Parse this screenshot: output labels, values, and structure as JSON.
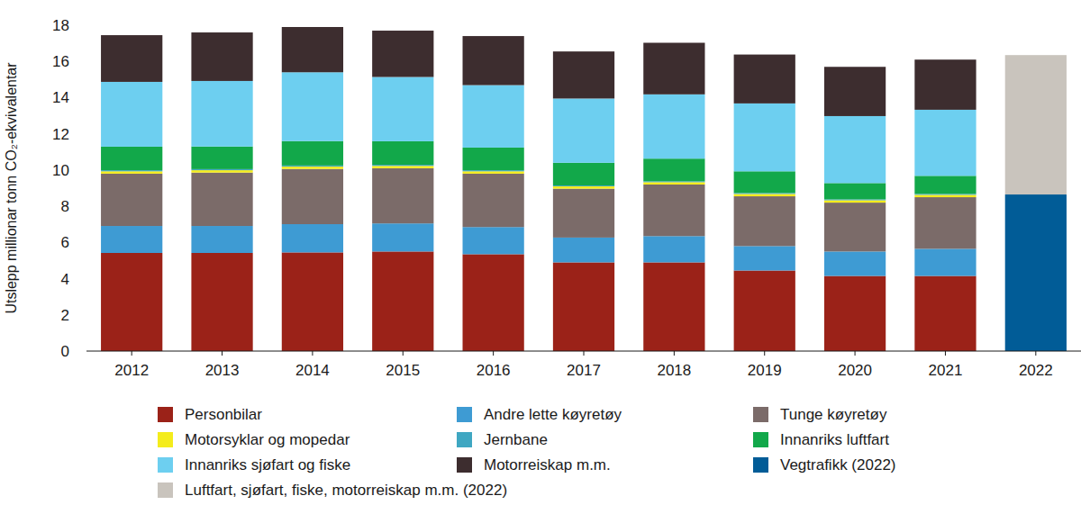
{
  "chart_data": {
    "type": "bar",
    "stacked": true,
    "y_label": "Utslepp millionar tonn CO₂-ekvivalentar",
    "categories": [
      "2012",
      "2013",
      "2014",
      "2015",
      "2016",
      "2017",
      "2018",
      "2019",
      "2020",
      "2021",
      "2022"
    ],
    "ylim": [
      0,
      18
    ],
    "yticks": [
      0,
      2,
      4,
      6,
      8,
      10,
      12,
      14,
      16,
      18
    ],
    "grid": false,
    "legend": "bottom",
    "series": [
      {
        "name": "Personbilar",
        "color": "#9b2218",
        "values": [
          5.42,
          5.42,
          5.45,
          5.5,
          5.35,
          4.9,
          4.9,
          4.45,
          4.15,
          4.15,
          null
        ]
      },
      {
        "name": "Andre lette køyretøy",
        "color": "#3e9bd3",
        "values": [
          1.49,
          1.49,
          1.56,
          1.55,
          1.5,
          1.37,
          1.45,
          1.35,
          1.35,
          1.5,
          null
        ]
      },
      {
        "name": "Tunge køyretøy",
        "color": "#7b6b69",
        "values": [
          2.89,
          2.95,
          3.05,
          3.05,
          2.95,
          2.7,
          2.85,
          2.75,
          2.7,
          2.85,
          null
        ]
      },
      {
        "name": "Motorsyklar og mopedar",
        "color": "#f4ec1c",
        "values": [
          0.13,
          0.13,
          0.13,
          0.13,
          0.13,
          0.13,
          0.13,
          0.13,
          0.13,
          0.13,
          null
        ]
      },
      {
        "name": "Jernbane",
        "color": "#3fa7c2",
        "values": [
          0.06,
          0.06,
          0.06,
          0.06,
          0.06,
          0.05,
          0.05,
          0.05,
          0.05,
          0.05,
          null
        ]
      },
      {
        "name": "Innanriks luftfart",
        "color": "#12a84a",
        "values": [
          1.3,
          1.25,
          1.35,
          1.3,
          1.25,
          1.25,
          1.25,
          1.2,
          0.9,
          1.0,
          null
        ]
      },
      {
        "name": "Innanriks sjøfart og fiske",
        "color": "#6dcff0",
        "values": [
          3.58,
          3.62,
          3.8,
          3.55,
          3.45,
          3.55,
          3.55,
          3.75,
          3.7,
          3.65,
          null
        ]
      },
      {
        "name": "Motorreiskap m.m.",
        "color": "#3d2d2f",
        "values": [
          2.58,
          2.68,
          2.5,
          2.56,
          2.71,
          2.6,
          2.85,
          2.7,
          2.72,
          2.77,
          null
        ]
      },
      {
        "name": "Vegtrafikk (2022)",
        "color": "#015c97",
        "values": [
          null,
          null,
          null,
          null,
          null,
          null,
          null,
          null,
          null,
          null,
          8.65
        ]
      },
      {
        "name": "Luftfart, sjøfart, fiske, motorreiskap m.m. (2022)",
        "color": "#c9c4bd",
        "values": [
          null,
          null,
          null,
          null,
          null,
          null,
          null,
          null,
          null,
          null,
          7.7
        ]
      }
    ]
  }
}
